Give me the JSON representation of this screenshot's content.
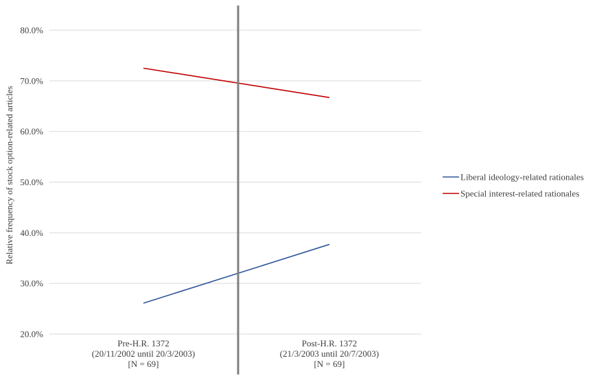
{
  "chart_data": {
    "type": "line",
    "categories": [
      [
        "Pre-H.R. 1372",
        "(20/11/2002 until 20/3/2003)",
        "[N = 69]"
      ],
      [
        "Post-H.R. 1372",
        "(21/3/2003 until 20/7/2003)",
        "[N = 69]"
      ]
    ],
    "series": [
      {
        "name": "Liberal ideology-related rationales",
        "values": [
          26.1,
          37.7
        ],
        "color": "#2f5597"
      },
      {
        "name": "Special interest-related rationales",
        "values": [
          72.5,
          66.7
        ],
        "color": "#c00000"
      }
    ],
    "ylabel": "Relative frequency of stock option-related articles",
    "xlabel": "",
    "ylim": [
      20,
      80
    ],
    "yticks": [
      20,
      30,
      40,
      50,
      60,
      70,
      80
    ],
    "ytick_labels": [
      "20.0%",
      "30.0%",
      "40.0%",
      "50.0%",
      "60.0%",
      "70.0%",
      "80.0%"
    ],
    "grid": true,
    "legend_position": "right",
    "divider": true,
    "colors": {
      "grid": "#d9d9d9",
      "divider": "#7f7f7f",
      "text": "#404040"
    }
  }
}
